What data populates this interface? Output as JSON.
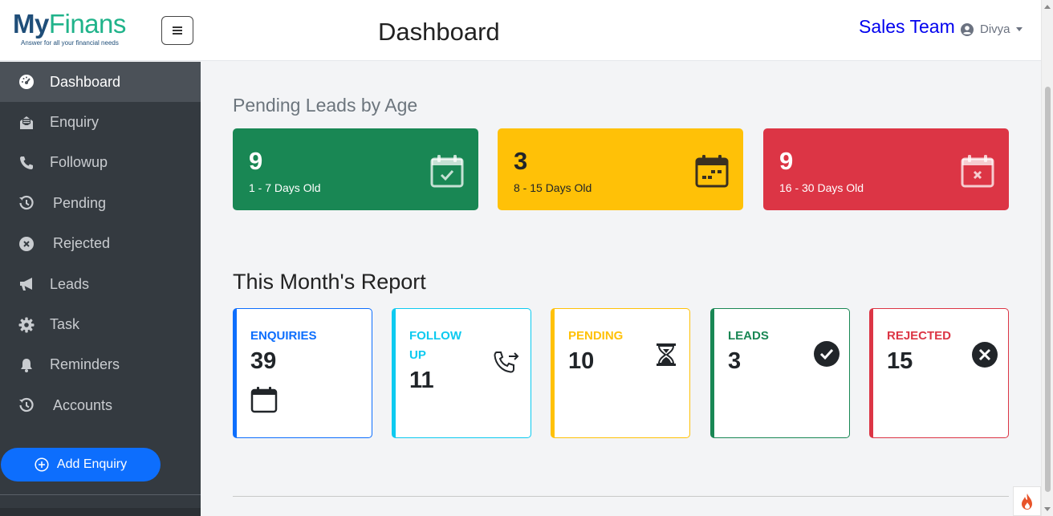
{
  "brand": {
    "name_part1": "My",
    "name_part2": "Finans",
    "tagline": "Answer for all your financial needs"
  },
  "header": {
    "title": "Dashboard",
    "team": "Sales Team",
    "user": "Divya"
  },
  "sidebar": {
    "items": [
      {
        "label": "Dashboard",
        "icon": "gauge-icon",
        "active": true
      },
      {
        "label": "Enquiry",
        "icon": "envelope-open-icon"
      },
      {
        "label": "Followup",
        "icon": "phone-icon"
      },
      {
        "label": "Pending",
        "icon": "history-icon"
      },
      {
        "label": "Rejected",
        "icon": "x-circle-icon"
      },
      {
        "label": "Leads",
        "icon": "megaphone-icon"
      },
      {
        "label": "Task",
        "icon": "gear-icon"
      },
      {
        "label": "Reminders",
        "icon": "bell-icon"
      },
      {
        "label": "Accounts",
        "icon": "history-icon"
      }
    ],
    "add_button": "Add Enquiry"
  },
  "pending_section": {
    "title": "Pending Leads by Age",
    "cards": [
      {
        "value": "9",
        "label": "1 - 7 Days Old",
        "color": "#198754",
        "icon": "calendar-check-icon"
      },
      {
        "value": "3",
        "label": "8 - 15 Days Old",
        "color": "#ffc107",
        "icon": "calendar-week-icon"
      },
      {
        "value": "9",
        "label": "16 - 30 Days Old",
        "color": "#dc3545",
        "icon": "calendar-x-icon"
      }
    ]
  },
  "report_section": {
    "title": "This Month's Report",
    "cards": [
      {
        "title": "ENQUIRIES",
        "value": "39",
        "color": "#0d6efd",
        "icon": "calendar-icon"
      },
      {
        "title": "FOLLOW UP",
        "value": "11",
        "color": "#0dcaf0",
        "icon": "phone-forward-icon"
      },
      {
        "title": "PENDING",
        "value": "10",
        "color": "#ffc107",
        "icon": "hourglass-icon"
      },
      {
        "title": "LEADS",
        "value": "3",
        "color": "#198754",
        "icon": "check-circle-icon"
      },
      {
        "title": "REJECTED",
        "value": "15",
        "color": "#dc3545",
        "icon": "x-circle-icon"
      }
    ]
  }
}
